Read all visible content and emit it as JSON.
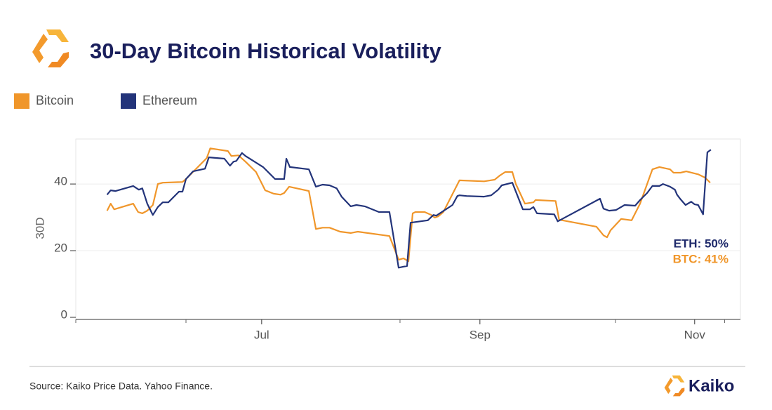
{
  "chart_data": {
    "type": "line",
    "title": "30-Day Bitcoin Historical Volatility",
    "ylabel": "30D",
    "source": "Source: Kaiko Price Data. Yahoo Finance.",
    "brand": "Kaiko",
    "ylim": [
      0,
      53.5
    ],
    "yticks": [
      0,
      20,
      40
    ],
    "xlim": [
      -52.8,
      136
    ],
    "xticks": [
      {
        "value": 0,
        "label": "Jul"
      },
      {
        "value": 62,
        "label": "Sep"
      },
      {
        "value": 123,
        "label": "Nov"
      }
    ],
    "xminorticks": [
      -52.8,
      -21.5,
      39.3,
      100.5,
      131.5
    ],
    "grid": true,
    "annotations": [
      {
        "text": "ETH: 50%",
        "color": "#1f2a6b"
      },
      {
        "text": "BTC: 41%",
        "color": "#f0962a"
      }
    ],
    "series": [
      {
        "name": "Bitcoin",
        "color": "#f0962a",
        "x": [
          -43.9,
          -42.9,
          -41.9,
          -36.5,
          -35.1,
          -33.9,
          -32.5,
          -30.9,
          -29.5,
          -28.1,
          -22.5,
          -21.5,
          -15.6,
          -14.6,
          -9.6,
          -8.6,
          -6.6,
          -4.6,
          -1.6,
          1,
          3.4,
          5.4,
          6.4,
          7.8,
          13.4,
          15.4,
          17.3,
          19.3,
          22.3,
          25.3,
          27.3,
          36.3,
          38.9,
          40.3,
          41.7,
          42.9,
          43.7,
          46.3,
          48.2,
          49.2,
          50.2,
          51.6,
          56.2,
          63.2,
          66.2,
          67.6,
          69.2,
          71.2,
          72.2,
          74.8,
          77.2,
          77.8,
          83.5,
          84.5,
          95.1,
          97.1,
          98.1,
          99.1,
          102.1,
          105.1,
          107.5,
          111.0,
          113.0,
          116.0,
          117.0,
          119.0,
          120.6,
          124.0,
          126.0,
          127.4
        ],
        "values": [
          32.0,
          34.1,
          32.4,
          34.1,
          31.6,
          31.2,
          32.0,
          33.7,
          40.0,
          40.4,
          40.6,
          41.5,
          47.8,
          50.7,
          49.9,
          48.4,
          48.6,
          46.7,
          43.6,
          38.1,
          37.1,
          36.8,
          37.3,
          39.2,
          37.9,
          26.5,
          26.9,
          26.9,
          25.7,
          25.3,
          25.7,
          24.4,
          17.3,
          17.7,
          16.8,
          31.2,
          31.6,
          31.6,
          30.7,
          29.9,
          30.3,
          31.6,
          41.1,
          40.8,
          41.3,
          42.5,
          43.6,
          43.6,
          40.0,
          34.1,
          34.5,
          35.2,
          34.9,
          29.3,
          27.2,
          24.6,
          24.0,
          26.1,
          29.5,
          29.1,
          34.1,
          44.4,
          45.1,
          44.4,
          43.4,
          43.4,
          43.8,
          42.9,
          41.9,
          40.4
        ]
      },
      {
        "name": "Ethereum",
        "color": "#23347a",
        "x": [
          -43.9,
          -42.9,
          -41.5,
          -36.5,
          -34.9,
          -33.9,
          -32.5,
          -30.9,
          -29.5,
          -28.1,
          -26.5,
          -23.5,
          -22.5,
          -21.5,
          -19.5,
          -16.1,
          -15.0,
          -10.6,
          -9.0,
          -8.0,
          -7.2,
          -5.6,
          -4.6,
          0.4,
          3.8,
          5.4,
          6.4,
          7.0,
          8.0,
          13.4,
          15.4,
          17.3,
          19.3,
          21.3,
          22.7,
          25.3,
          26.9,
          29.3,
          33.3,
          36.3,
          38.9,
          40.3,
          41.3,
          42.3,
          47.2,
          48.8,
          49.6,
          54.2,
          55.6,
          56.2,
          58.2,
          63.2,
          65.2,
          67.2,
          68.2,
          71.2,
          74.2,
          76.2,
          77.2,
          78.2,
          83.1,
          84.1,
          96.1,
          97.1,
          98.7,
          100.7,
          103.1,
          106.1,
          107.5,
          109.5,
          111.0,
          113.0,
          114.0,
          116.0,
          117.4,
          118.0,
          119.0,
          120.4,
          122.0,
          123.0,
          124.0,
          125.4,
          126.6,
          127.6
        ],
        "values": [
          36.8,
          38.1,
          37.9,
          39.4,
          38.3,
          38.7,
          34.1,
          30.7,
          33.1,
          34.5,
          34.5,
          37.7,
          37.7,
          41.5,
          43.8,
          44.6,
          48.0,
          47.6,
          45.5,
          46.7,
          46.9,
          49.3,
          48.4,
          45.1,
          41.5,
          41.5,
          41.5,
          47.6,
          45.1,
          44.4,
          39.2,
          39.8,
          39.6,
          38.7,
          36.2,
          33.3,
          33.7,
          33.3,
          31.6,
          31.6,
          14.9,
          15.2,
          15.4,
          28.4,
          29.1,
          30.7,
          30.5,
          33.7,
          36.4,
          36.6,
          36.4,
          36.2,
          36.6,
          38.3,
          39.6,
          40.4,
          32.4,
          32.4,
          33.1,
          31.2,
          30.9,
          28.8,
          35.6,
          32.6,
          32.0,
          32.2,
          33.7,
          33.5,
          35.2,
          37.3,
          39.4,
          39.4,
          40.0,
          39.2,
          38.3,
          36.8,
          35.4,
          33.7,
          34.7,
          33.9,
          33.7,
          30.9,
          49.5,
          50.3
        ]
      }
    ]
  }
}
